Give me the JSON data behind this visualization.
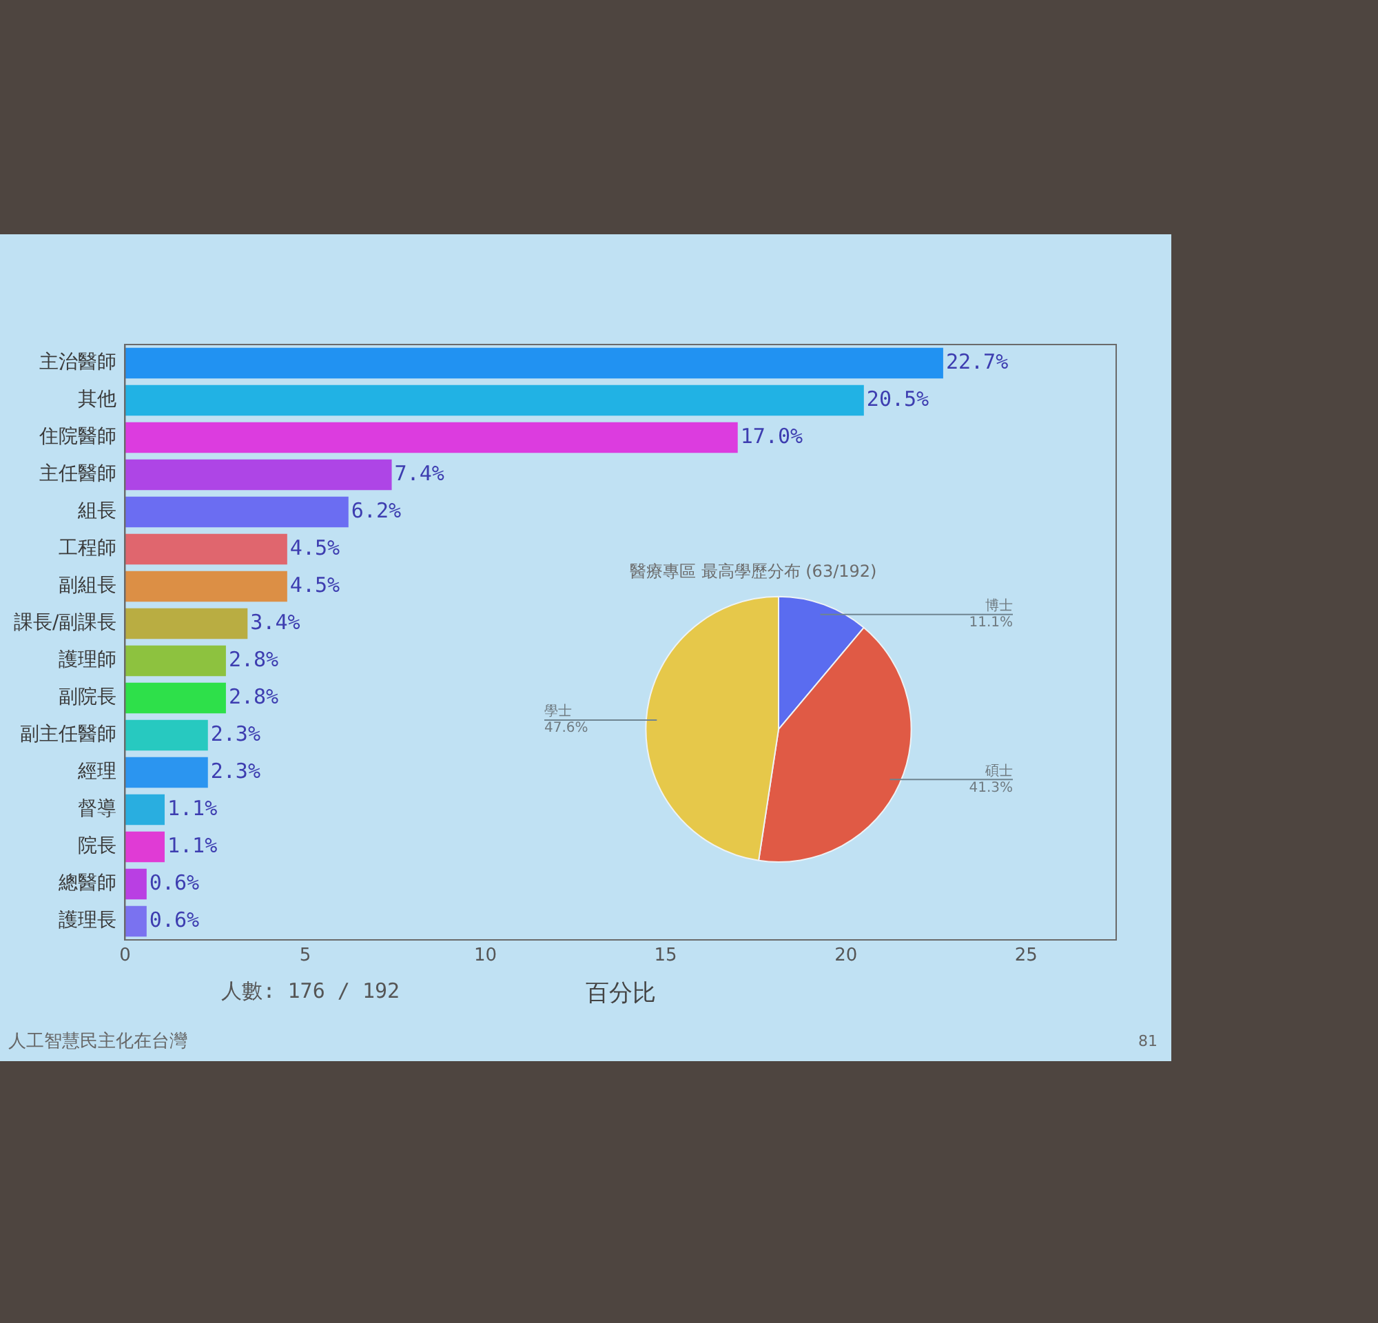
{
  "chart_data": [
    {
      "type": "bar",
      "orientation": "horizontal",
      "categories": [
        "主治醫師",
        "其他",
        "住院醫師",
        "主任醫師",
        "組長",
        "工程師",
        "副組長",
        "課長/副課長",
        "護理師",
        "副院長",
        "副主任醫師",
        "經理",
        "督導",
        "院長",
        "總醫師",
        "護理長"
      ],
      "values": [
        22.7,
        20.5,
        17.0,
        7.4,
        6.2,
        4.5,
        4.5,
        3.4,
        2.8,
        2.8,
        2.3,
        2.3,
        1.1,
        1.1,
        0.6,
        0.6
      ],
      "colors": [
        "#2192f2",
        "#21b2e4",
        "#dc3cdf",
        "#ae45e6",
        "#6b6df2",
        "#e0666e",
        "#dc8f45",
        "#b9ad42",
        "#8dc23f",
        "#2ee04a",
        "#27c9c0",
        "#2b95f0",
        "#29aee0",
        "#e03bd5",
        "#b93fe3",
        "#7a72f0"
      ],
      "value_labels": [
        "22.7%",
        "20.5%",
        "17.0%",
        "7.4%",
        "6.2%",
        "4.5%",
        "4.5%",
        "3.4%",
        "2.8%",
        "2.8%",
        "2.3%",
        "2.3%",
        "1.1%",
        "1.1%",
        "0.6%",
        "0.6%"
      ],
      "xlim": [
        0,
        27.5
      ],
      "xticks": [
        0,
        5,
        10,
        15,
        20,
        25
      ],
      "xlabel": "百分比",
      "grid": false,
      "legend": false,
      "annotations": [
        "人數: 176 / 192",
        "人工智慧民主化在台灣",
        "81"
      ]
    },
    {
      "type": "pie",
      "title": "醫療專區 最高學歷分布 (63/192)",
      "categories": [
        "博士",
        "碩士",
        "學士"
      ],
      "values": [
        11.1,
        41.3,
        47.6
      ],
      "colors": [
        "#5a6cf0",
        "#e05a45",
        "#e6c84a"
      ],
      "value_labels": [
        "11.1%",
        "41.3%",
        "47.6%"
      ],
      "legend": false
    }
  ]
}
